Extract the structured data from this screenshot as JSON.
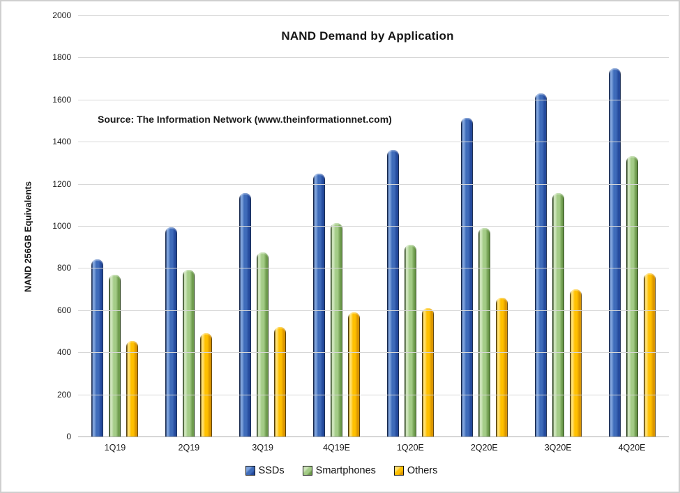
{
  "chart_data": {
    "type": "bar",
    "title": "NAND Demand by Application",
    "source_note": "Source: The Information Network (www.theinformationnet.com)",
    "ylabel": "NAND 256GB Equivalents",
    "xlabel": "",
    "categories": [
      "1Q19",
      "2Q19",
      "3Q19",
      "4Q19E",
      "1Q20E",
      "2Q20E",
      "3Q20E",
      "4Q20E"
    ],
    "series": [
      {
        "name": "SSDs",
        "values": [
          840,
          995,
          1155,
          1250,
          1360,
          1515,
          1630,
          1750
        ],
        "colors": {
          "main": "#3f6cba",
          "light": "#7fa3dc",
          "dark": "#24499b",
          "edge": "#0d1f45"
        }
      },
      {
        "name": "Smartphones",
        "values": [
          770,
          790,
          875,
          1015,
          910,
          990,
          1155,
          1330
        ],
        "colors": {
          "main": "#a4cc87",
          "light": "#cfe5bc",
          "dark": "#6d9a4c",
          "edge": "#233a14"
        }
      },
      {
        "name": "Others",
        "values": [
          455,
          490,
          520,
          590,
          610,
          660,
          700,
          775
        ],
        "colors": {
          "main": "#ffc000",
          "light": "#ffe070",
          "dark": "#d99400",
          "edge": "#4a3400"
        }
      }
    ],
    "ylim": [
      0,
      2000
    ],
    "ytick_interval": 200,
    "yticks": [
      0,
      200,
      400,
      600,
      800,
      1000,
      1200,
      1400,
      1600,
      1800,
      2000
    ],
    "grid": "horizontal-only",
    "legend_position": "bottom-center"
  }
}
